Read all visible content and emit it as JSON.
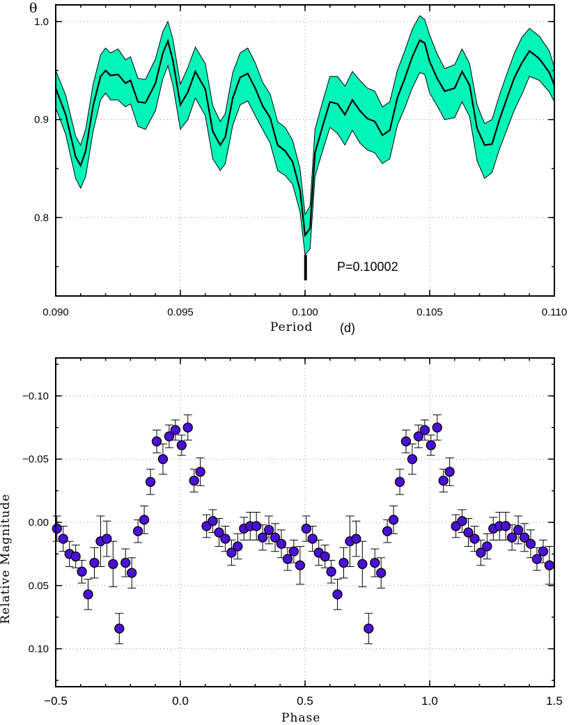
{
  "chart_data": [
    {
      "type": "line",
      "ylabel": "θ",
      "xlabel": "Period",
      "xunit": "(d)",
      "xlim": [
        0.09,
        0.11
      ],
      "ylim": [
        0.72,
        1.017
      ],
      "xticks": [
        "0.090",
        "0.095",
        "0.100",
        "0.105",
        "0.110"
      ],
      "yticks": [
        "0.8",
        "0.9",
        "1.0"
      ],
      "grid": true,
      "band_color": "#00f5b8",
      "line_color": "#000000",
      "annotation": {
        "text": "P=0.10002",
        "marker_period": 0.10002
      },
      "series": [
        {
          "x": [
            0.09,
            0.0904,
            0.0908,
            0.091,
            0.0912,
            0.0915,
            0.0918,
            0.092,
            0.0922,
            0.0925,
            0.0928,
            0.093,
            0.0933,
            0.0936,
            0.094,
            0.0943,
            0.0945,
            0.0947,
            0.095,
            0.0953,
            0.0956,
            0.096,
            0.0963,
            0.0966,
            0.0968,
            0.0971,
            0.0974,
            0.0977,
            0.098,
            0.0983,
            0.0986,
            0.0989,
            0.0992,
            0.0995,
            0.0998,
            0.1,
            0.1002,
            0.1004,
            0.1007,
            0.101,
            0.1013,
            0.1016,
            0.1019,
            0.1022,
            0.1025,
            0.1028,
            0.1031,
            0.1034,
            0.1037,
            0.104,
            0.1043,
            0.1046,
            0.1048,
            0.105,
            0.1053,
            0.1056,
            0.106,
            0.1063,
            0.1066,
            0.1069,
            0.1072,
            0.1075,
            0.1078,
            0.1081,
            0.1084,
            0.1087,
            0.109,
            0.1094,
            0.1098,
            0.11
          ],
          "y": [
            0.932,
            0.905,
            0.862,
            0.853,
            0.868,
            0.914,
            0.944,
            0.95,
            0.945,
            0.946,
            0.937,
            0.94,
            0.918,
            0.917,
            0.937,
            0.968,
            0.98,
            0.96,
            0.915,
            0.928,
            0.949,
            0.931,
            0.888,
            0.874,
            0.882,
            0.922,
            0.943,
            0.947,
            0.932,
            0.914,
            0.902,
            0.874,
            0.868,
            0.857,
            0.828,
            0.782,
            0.789,
            0.866,
            0.893,
            0.918,
            0.916,
            0.905,
            0.92,
            0.909,
            0.901,
            0.898,
            0.884,
            0.889,
            0.922,
            0.942,
            0.964,
            0.981,
            0.978,
            0.959,
            0.942,
            0.929,
            0.932,
            0.949,
            0.935,
            0.891,
            0.874,
            0.875,
            0.9,
            0.922,
            0.943,
            0.958,
            0.97,
            0.962,
            0.948,
            0.935
          ],
          "lower": [
            0.912,
            0.885,
            0.84,
            0.83,
            0.842,
            0.888,
            0.92,
            0.927,
            0.92,
            0.92,
            0.913,
            0.916,
            0.893,
            0.89,
            0.909,
            0.942,
            0.955,
            0.935,
            0.89,
            0.9,
            0.922,
            0.904,
            0.86,
            0.848,
            0.855,
            0.894,
            0.915,
            0.919,
            0.904,
            0.89,
            0.876,
            0.848,
            0.843,
            0.834,
            0.806,
            0.762,
            0.768,
            0.842,
            0.868,
            0.892,
            0.886,
            0.874,
            0.889,
            0.876,
            0.869,
            0.866,
            0.855,
            0.86,
            0.894,
            0.912,
            0.932,
            0.948,
            0.946,
            0.927,
            0.914,
            0.9,
            0.902,
            0.918,
            0.903,
            0.858,
            0.84,
            0.846,
            0.87,
            0.89,
            0.91,
            0.926,
            0.944,
            0.94,
            0.928,
            0.918
          ],
          "upper": [
            0.95,
            0.925,
            0.883,
            0.874,
            0.89,
            0.936,
            0.966,
            0.973,
            0.968,
            0.972,
            0.961,
            0.964,
            0.942,
            0.941,
            0.962,
            0.99,
            1.0,
            0.982,
            0.936,
            0.953,
            0.974,
            0.957,
            0.914,
            0.898,
            0.906,
            0.948,
            0.968,
            0.973,
            0.958,
            0.938,
            0.926,
            0.898,
            0.892,
            0.879,
            0.85,
            0.803,
            0.812,
            0.89,
            0.918,
            0.944,
            0.944,
            0.934,
            0.949,
            0.94,
            0.932,
            0.929,
            0.913,
            0.918,
            0.95,
            0.97,
            0.992,
            1.006,
            1.002,
            0.986,
            0.967,
            0.952,
            0.956,
            0.972,
            0.957,
            0.915,
            0.896,
            0.9,
            0.925,
            0.947,
            0.968,
            0.984,
            0.993,
            0.985,
            0.97,
            0.953
          ]
        }
      ]
    },
    {
      "type": "scatter",
      "xlabel": "Phase",
      "ylabel": "Relative Magnitude",
      "xlim": [
        -0.5,
        1.5
      ],
      "ylim": [
        0.13,
        -0.13
      ],
      "y_inverted": true,
      "xticks": [
        "−0.5",
        "0.0",
        "0.5",
        "1.0",
        "1.5"
      ],
      "yticks": [
        "−0.10",
        "−0.05",
        "0.00",
        "0.05",
        "0.10"
      ],
      "grid": true,
      "marker_color": "#4b10d6",
      "series": [
        {
          "x": [
            -0.495,
            -0.47,
            -0.445,
            -0.42,
            -0.395,
            -0.37,
            -0.345,
            -0.32,
            -0.295,
            -0.27,
            -0.245,
            -0.22,
            -0.195,
            -0.17,
            -0.145,
            -0.12,
            -0.095,
            -0.07,
            -0.045,
            -0.02,
            0.005,
            0.03,
            0.055,
            0.08,
            0.105,
            0.13,
            0.155,
            0.18,
            0.205,
            0.23,
            0.255,
            0.28,
            0.305,
            0.33,
            0.355,
            0.38,
            0.405,
            0.43,
            0.455,
            0.48,
            0.505,
            0.53,
            0.555,
            0.58,
            0.605,
            0.63,
            0.655,
            0.68,
            0.705,
            0.73,
            0.755,
            0.78,
            0.805,
            0.83,
            0.855,
            0.88,
            0.905,
            0.93,
            0.955,
            0.98,
            1.005,
            1.03,
            1.055,
            1.08,
            1.105,
            1.13,
            1.155,
            1.18,
            1.205,
            1.23,
            1.255,
            1.28,
            1.305,
            1.33,
            1.355,
            1.38,
            1.405,
            1.43,
            1.455,
            1.48
          ],
          "y": [
            0.005,
            0.013,
            0.025,
            0.027,
            0.039,
            0.057,
            0.032,
            0.015,
            0.013,
            0.033,
            0.084,
            0.032,
            0.04,
            0.007,
            -0.002,
            -0.032,
            -0.064,
            -0.05,
            -0.068,
            -0.073,
            -0.061,
            -0.075,
            -0.033,
            -0.04,
            0.003,
            -0.001,
            0.008,
            0.013,
            0.024,
            0.019,
            0.005,
            0.003,
            0.003,
            0.012,
            0.006,
            0.012,
            0.017,
            0.029,
            0.023,
            0.034,
            0.005,
            0.013,
            0.024,
            0.027,
            0.039,
            0.057,
            0.032,
            0.015,
            0.013,
            0.033,
            0.084,
            0.032,
            0.04,
            0.007,
            -0.002,
            -0.032,
            -0.064,
            -0.05,
            -0.068,
            -0.073,
            -0.061,
            -0.075,
            -0.033,
            -0.04,
            0.003,
            -0.001,
            0.008,
            0.013,
            0.024,
            0.019,
            0.005,
            0.003,
            0.003,
            0.012,
            0.006,
            0.012,
            0.017,
            0.029,
            0.023,
            0.034
          ],
          "err": [
            0.01,
            0.01,
            0.01,
            0.009,
            0.009,
            0.012,
            0.012,
            0.02,
            0.014,
            0.018,
            0.012,
            0.011,
            0.012,
            0.009,
            0.011,
            0.01,
            0.009,
            0.012,
            0.009,
            0.008,
            0.008,
            0.01,
            0.009,
            0.011,
            0.009,
            0.009,
            0.011,
            0.01,
            0.01,
            0.01,
            0.009,
            0.011,
            0.011,
            0.01,
            0.011,
            0.011,
            0.011,
            0.009,
            0.009,
            0.015,
            0.01,
            0.01,
            0.01,
            0.009,
            0.009,
            0.012,
            0.012,
            0.02,
            0.014,
            0.018,
            0.012,
            0.011,
            0.012,
            0.009,
            0.011,
            0.01,
            0.009,
            0.012,
            0.009,
            0.008,
            0.008,
            0.01,
            0.009,
            0.011,
            0.009,
            0.009,
            0.011,
            0.01,
            0.01,
            0.01,
            0.009,
            0.011,
            0.011,
            0.01,
            0.011,
            0.011,
            0.011,
            0.009,
            0.009,
            0.015
          ]
        }
      ]
    }
  ]
}
